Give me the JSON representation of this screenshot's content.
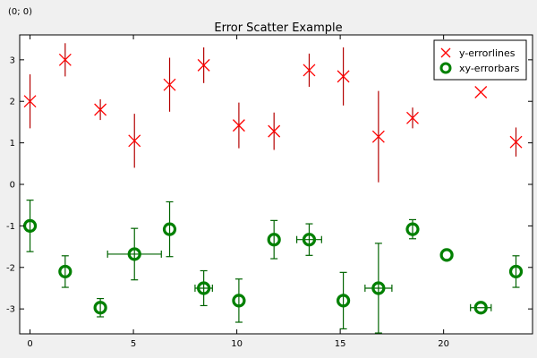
{
  "coordinate_readout": "(0; 0)",
  "chart_data": {
    "type": "scatter",
    "title": "Error Scatter Example",
    "xlabel": "",
    "ylabel": "",
    "xlim": [
      -0.5,
      24.3
    ],
    "ylim": [
      -3.6,
      3.6
    ],
    "x_ticks": [
      0,
      5,
      10,
      15,
      20
    ],
    "y_ticks": [
      -3,
      -2,
      -1,
      0,
      1,
      2,
      3
    ],
    "grid": false,
    "legend_position": "top-right",
    "series": [
      {
        "name": "y-errorlines",
        "color": "#ff0000",
        "marker": "x-cross",
        "points": [
          {
            "x": 0.0,
            "y": 2.0,
            "yerr_low": 0.65,
            "yerr_high": 0.65
          },
          {
            "x": 1.7,
            "y": 3.0,
            "yerr_low": 0.4,
            "yerr_high": 0.4
          },
          {
            "x": 3.4,
            "y": 1.8,
            "yerr_low": 0.25,
            "yerr_high": 0.25
          },
          {
            "x": 5.05,
            "y": 1.05,
            "yerr_low": 0.65,
            "yerr_high": 0.65
          },
          {
            "x": 6.75,
            "y": 2.4,
            "yerr_low": 0.65,
            "yerr_high": 0.65
          },
          {
            "x": 8.4,
            "y": 2.87,
            "yerr_low": 0.43,
            "yerr_high": 0.43
          },
          {
            "x": 10.1,
            "y": 1.42,
            "yerr_low": 0.55,
            "yerr_high": 0.55
          },
          {
            "x": 11.8,
            "y": 1.28,
            "yerr_low": 0.45,
            "yerr_high": 0.45
          },
          {
            "x": 13.5,
            "y": 2.75,
            "yerr_low": 0.4,
            "yerr_high": 0.4
          },
          {
            "x": 15.15,
            "y": 2.6,
            "yerr_low": 0.7,
            "yerr_high": 0.7
          },
          {
            "x": 16.85,
            "y": 1.15,
            "yerr_low": 1.1,
            "yerr_high": 1.1
          },
          {
            "x": 18.5,
            "y": 1.6,
            "yerr_low": 0.25,
            "yerr_high": 0.25
          },
          {
            "x": 21.8,
            "y": 2.22,
            "yerr_low": 0.0,
            "yerr_high": 0.0
          },
          {
            "x": 23.5,
            "y": 1.02,
            "yerr_low": 0.35,
            "yerr_high": 0.35
          }
        ]
      },
      {
        "name": "xy-errorbars",
        "color": "#008000",
        "marker": "ring",
        "points": [
          {
            "x": 0.0,
            "y": -1.0,
            "xerr": 0.0,
            "yerr": 0.62
          },
          {
            "x": 1.7,
            "y": -2.1,
            "xerr": 0.0,
            "yerr": 0.38
          },
          {
            "x": 3.4,
            "y": -2.97,
            "xerr": 0.0,
            "yerr": 0.22
          },
          {
            "x": 5.05,
            "y": -1.68,
            "xerr": 1.3,
            "yerr": 0.62
          },
          {
            "x": 6.75,
            "y": -1.08,
            "xerr": 0.0,
            "yerr": 0.66
          },
          {
            "x": 8.4,
            "y": -2.5,
            "xerr": 0.42,
            "yerr": 0.42
          },
          {
            "x": 10.1,
            "y": -2.8,
            "xerr": 0.0,
            "yerr": 0.52
          },
          {
            "x": 11.8,
            "y": -1.33,
            "xerr": 0.0,
            "yerr": 0.46
          },
          {
            "x": 13.5,
            "y": -1.33,
            "xerr": 0.6,
            "yerr": 0.38
          },
          {
            "x": 15.15,
            "y": -2.8,
            "xerr": 0.0,
            "yerr": 0.68
          },
          {
            "x": 16.85,
            "y": -2.5,
            "xerr": 0.65,
            "yerr": 1.08
          },
          {
            "x": 18.5,
            "y": -1.08,
            "xerr": 0.0,
            "yerr": 0.23
          },
          {
            "x": 20.15,
            "y": -1.7,
            "xerr": 0.0,
            "yerr": 0.0
          },
          {
            "x": 21.8,
            "y": -2.97,
            "xerr": 0.5,
            "yerr": 0.0
          },
          {
            "x": 23.5,
            "y": -2.1,
            "xerr": 0.0,
            "yerr": 0.38
          }
        ]
      }
    ]
  }
}
